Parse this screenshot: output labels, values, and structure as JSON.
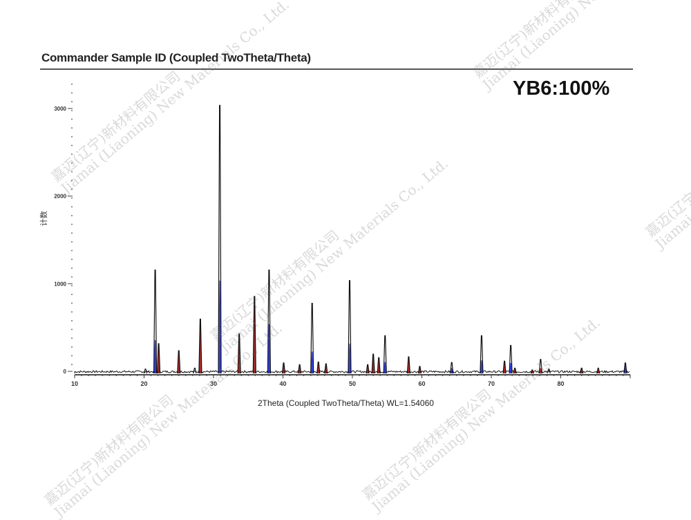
{
  "chart_data": {
    "type": "line",
    "title": "Commander Sample ID (Coupled TwoTheta/Theta)",
    "annotation": "YB6:100%",
    "xlabel": "2Theta (Coupled TwoTheta/Theta) WL=1.54060",
    "ylabel": "计数",
    "xlim": [
      10,
      90
    ],
    "ylim": [
      0,
      3300
    ],
    "x_ticks": [
      "10",
      "20",
      "30",
      "40",
      "50",
      "60",
      "70",
      "80"
    ],
    "y_ticks": [
      "0",
      "1000",
      "2000",
      "3000"
    ],
    "grid": false,
    "colors": {
      "observed": "#111111",
      "reference_blue": "#1f2fe0",
      "reference_red": "#a01818"
    },
    "peaks": [
      {
        "x": 20.2,
        "y": 50,
        "ref": "none",
        "ref_y": 0
      },
      {
        "x": 21.6,
        "y": 1180,
        "ref": "blue",
        "ref_y": 380
      },
      {
        "x": 22.1,
        "y": 340,
        "ref": "red",
        "ref_y": 330
      },
      {
        "x": 25.0,
        "y": 260,
        "ref": "red",
        "ref_y": 230
      },
      {
        "x": 27.3,
        "y": 60,
        "ref": "none",
        "ref_y": 0
      },
      {
        "x": 28.1,
        "y": 620,
        "ref": "red",
        "ref_y": 580
      },
      {
        "x": 30.9,
        "y": 3060,
        "ref": "blue",
        "ref_y": 1060
      },
      {
        "x": 33.7,
        "y": 450,
        "ref": "red",
        "ref_y": 420
      },
      {
        "x": 35.9,
        "y": 880,
        "ref": "red",
        "ref_y": 780
      },
      {
        "x": 38.0,
        "y": 1180,
        "ref": "blue",
        "ref_y": 560
      },
      {
        "x": 40.1,
        "y": 120,
        "ref": "red",
        "ref_y": 100
      },
      {
        "x": 42.4,
        "y": 100,
        "ref": "red",
        "ref_y": 100
      },
      {
        "x": 44.2,
        "y": 800,
        "ref": "blue",
        "ref_y": 250
      },
      {
        "x": 45.1,
        "y": 130,
        "ref": "red",
        "ref_y": 110
      },
      {
        "x": 46.2,
        "y": 110,
        "ref": "red",
        "ref_y": 110
      },
      {
        "x": 49.6,
        "y": 1060,
        "ref": "blue",
        "ref_y": 340
      },
      {
        "x": 52.2,
        "y": 100,
        "ref": "red",
        "ref_y": 90
      },
      {
        "x": 53.0,
        "y": 220,
        "ref": "red",
        "ref_y": 210
      },
      {
        "x": 53.8,
        "y": 180,
        "ref": "red",
        "ref_y": 170
      },
      {
        "x": 54.7,
        "y": 430,
        "ref": "blue",
        "ref_y": 130
      },
      {
        "x": 58.1,
        "y": 190,
        "ref": "red",
        "ref_y": 190
      },
      {
        "x": 59.7,
        "y": 80,
        "ref": "red",
        "ref_y": 80
      },
      {
        "x": 64.3,
        "y": 125,
        "ref": "blue",
        "ref_y": 60
      },
      {
        "x": 68.6,
        "y": 430,
        "ref": "blue",
        "ref_y": 150
      },
      {
        "x": 71.9,
        "y": 140,
        "ref": "red",
        "ref_y": 130
      },
      {
        "x": 72.8,
        "y": 320,
        "ref": "blue",
        "ref_y": 120
      },
      {
        "x": 73.4,
        "y": 60,
        "ref": "red",
        "ref_y": 60
      },
      {
        "x": 75.9,
        "y": 40,
        "ref": "red",
        "ref_y": 40
      },
      {
        "x": 77.1,
        "y": 160,
        "ref": "red",
        "ref_y": 60
      },
      {
        "x": 78.3,
        "y": 50,
        "ref": "none",
        "ref_y": 0
      },
      {
        "x": 83.0,
        "y": 60,
        "ref": "red",
        "ref_y": 50
      },
      {
        "x": 85.4,
        "y": 60,
        "ref": "red",
        "ref_y": 40
      },
      {
        "x": 89.3,
        "y": 120,
        "ref": "blue",
        "ref_y": 110
      }
    ]
  },
  "watermark": {
    "cn": "嘉迈(辽宁)新材料有限公司",
    "en": "Jiamai (Liaoning) New Materials Co., Ltd."
  }
}
